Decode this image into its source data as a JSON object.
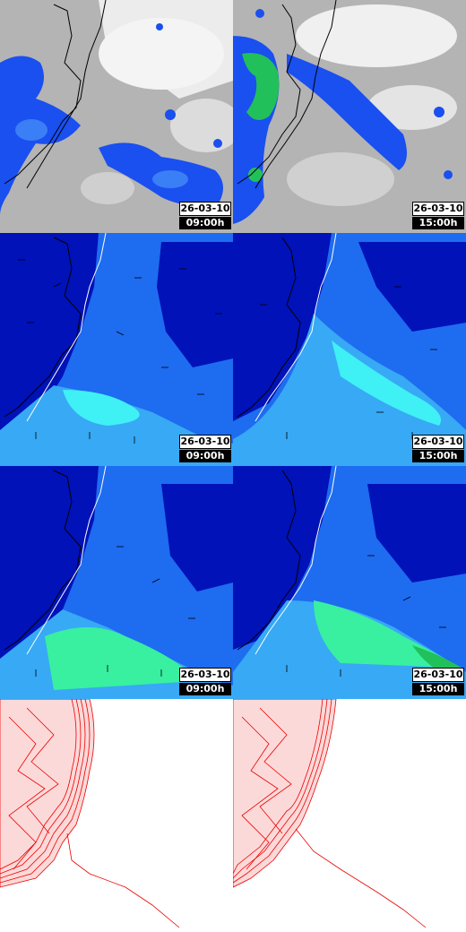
{
  "panels": [
    {
      "id": "sat-0900",
      "kind": "satellite",
      "date": "26-03-10",
      "time": "09:00h"
    },
    {
      "id": "sat-1500",
      "kind": "satellite",
      "date": "26-03-10",
      "time": "15:00h"
    },
    {
      "id": "wind-a-0900",
      "kind": "field",
      "date": "26-03-10",
      "time": "09:00h"
    },
    {
      "id": "wind-a-1500",
      "kind": "field",
      "date": "26-03-10",
      "time": "15:00h"
    },
    {
      "id": "wind-b-0900",
      "kind": "field",
      "date": "26-03-10",
      "time": "09:00h"
    },
    {
      "id": "wind-b-1500",
      "kind": "field",
      "date": "26-03-10",
      "time": "15:00h"
    },
    {
      "id": "contour-a",
      "kind": "contour"
    },
    {
      "id": "contour-b",
      "kind": "contour"
    }
  ],
  "colors": {
    "cloud_gray": "#b4b4b4",
    "cloud_white": "#f4f4f4",
    "precip_blue": "#1a4ff0",
    "precip_green": "#22c05a",
    "field_dark": "#0012b8",
    "field_mid": "#1e6cf0",
    "field_light": "#37a9f5",
    "field_cyan": "#3ff0f5",
    "field_green": "#38f0a0",
    "contour_red": "#ee0000",
    "coast": "#000000"
  }
}
